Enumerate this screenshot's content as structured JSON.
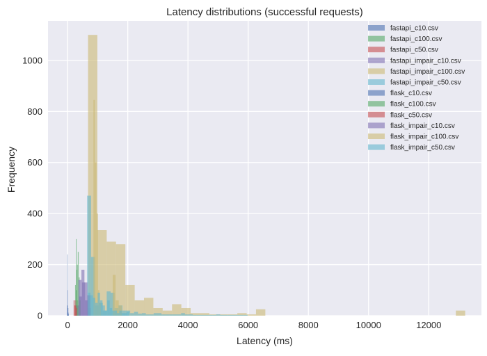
{
  "chart_data": {
    "type": "bar",
    "subtype": "overlapping-histogram",
    "title": "Latency distributions (successful requests)",
    "xlabel": "Latency (ms)",
    "ylabel": "Frequency",
    "xlim": [
      -650,
      13750
    ],
    "ylim": [
      0,
      1155
    ],
    "x_ticks": [
      0,
      2000,
      4000,
      6000,
      8000,
      10000,
      12000
    ],
    "y_ticks": [
      0,
      200,
      400,
      600,
      800,
      1000
    ],
    "x_tick_labels": [
      "0",
      "2000",
      "4000",
      "6000",
      "8000",
      "10000",
      "12000"
    ],
    "y_tick_labels": [
      "0",
      "200",
      "400",
      "600",
      "800",
      "1000"
    ],
    "grid": true,
    "legend_position": "top-right",
    "style": {
      "plot_background": "#eaeaf2",
      "grid_color": "#ffffff",
      "bar_opacity": 0.6
    },
    "series": [
      {
        "name": "fastapi_c10.csv",
        "color": "#4c72b0",
        "bins": [
          [
            -10,
            0,
            12
          ],
          [
            0,
            10,
            40
          ],
          [
            10,
            20,
            30
          ],
          [
            20,
            30,
            12
          ],
          [
            30,
            40,
            6
          ]
        ]
      },
      {
        "name": "fastapi_c100.csv",
        "color": "#55a868",
        "bins": [
          [
            250,
            275,
            120
          ],
          [
            275,
            300,
            300
          ],
          [
            300,
            325,
            180
          ],
          [
            325,
            350,
            60
          ]
        ]
      },
      {
        "name": "fastapi_c50.csv",
        "color": "#c44e52",
        "bins": [
          [
            230,
            260,
            40
          ],
          [
            260,
            290,
            60
          ],
          [
            290,
            320,
            40
          ]
        ]
      },
      {
        "name": "fastapi_impair_c10.csv",
        "color": "#8172b2",
        "bins": [
          [
            280,
            380,
            40
          ],
          [
            380,
            480,
            75
          ],
          [
            480,
            580,
            130
          ],
          [
            580,
            680,
            60
          ],
          [
            680,
            780,
            30
          ]
        ]
      },
      {
        "name": "fastapi_impair_c100.csv",
        "color": "#ccb974",
        "bins": [
          [
            680,
            990,
            1100
          ],
          [
            990,
            1300,
            335
          ],
          [
            1300,
            1610,
            290
          ],
          [
            1610,
            1920,
            280
          ],
          [
            1920,
            2230,
            120
          ],
          [
            2230,
            2540,
            60
          ],
          [
            2540,
            2850,
            70
          ],
          [
            2850,
            3160,
            30
          ],
          [
            3160,
            3470,
            20
          ],
          [
            3470,
            3780,
            45
          ],
          [
            3780,
            4090,
            30
          ],
          [
            4090,
            4400,
            10
          ],
          [
            4400,
            4710,
            10
          ],
          [
            4710,
            5020,
            5
          ],
          [
            5020,
            5330,
            5
          ],
          [
            5330,
            5640,
            5
          ],
          [
            5640,
            5950,
            10
          ],
          [
            5950,
            6260,
            5
          ],
          [
            6260,
            6570,
            25
          ],
          [
            12900,
            13210,
            20
          ]
        ]
      },
      {
        "name": "fastapi_impair_c50.csv",
        "color": "#64b5cd",
        "bins": [
          [
            650,
            780,
            470
          ],
          [
            780,
            910,
            230
          ],
          [
            910,
            1040,
            40
          ],
          [
            1040,
            1170,
            50
          ],
          [
            1170,
            1300,
            20
          ],
          [
            1300,
            1430,
            95
          ],
          [
            1430,
            1560,
            90
          ],
          [
            1560,
            1690,
            30
          ],
          [
            1690,
            1820,
            40
          ],
          [
            1820,
            1950,
            20
          ],
          [
            1950,
            2080,
            20
          ],
          [
            2080,
            2210,
            10
          ],
          [
            2210,
            2340,
            15
          ],
          [
            2340,
            2470,
            8
          ],
          [
            2470,
            2600,
            10
          ],
          [
            2600,
            2730,
            5
          ],
          [
            2730,
            2860,
            5
          ],
          [
            2860,
            2990,
            10
          ],
          [
            2990,
            3120,
            10
          ],
          [
            3120,
            3250,
            5
          ],
          [
            3250,
            3380,
            5
          ],
          [
            3380,
            3510,
            5
          ],
          [
            3510,
            3640,
            5
          ],
          [
            3640,
            3770,
            5
          ],
          [
            3770,
            3900,
            10
          ],
          [
            3900,
            4030,
            5
          ],
          [
            4030,
            4160,
            5
          ],
          [
            4160,
            4290,
            3
          ],
          [
            4290,
            4420,
            3
          ],
          [
            4420,
            4550,
            3
          ],
          [
            4550,
            4680,
            3
          ],
          [
            4680,
            4810,
            3
          ],
          [
            4810,
            4940,
            3
          ],
          [
            4940,
            5070,
            5
          ],
          [
            5070,
            5200,
            3
          ],
          [
            5200,
            5330,
            3
          ],
          [
            5330,
            5460,
            3
          ],
          [
            5460,
            5590,
            3
          ],
          [
            5590,
            5720,
            3
          ],
          [
            5720,
            5850,
            3
          ],
          [
            5850,
            5980,
            3
          ]
        ]
      },
      {
        "name": "flask_c10.csv",
        "color": "#4c72b0",
        "bins": [
          [
            -20,
            -10,
            40
          ],
          [
            -10,
            0,
            240
          ],
          [
            0,
            10,
            100
          ],
          [
            10,
            20,
            30
          ]
        ]
      },
      {
        "name": "flask_c100.csv",
        "color": "#55a868",
        "bins": [
          [
            280,
            310,
            100
          ],
          [
            310,
            340,
            200
          ],
          [
            340,
            370,
            250
          ],
          [
            370,
            400,
            150
          ],
          [
            400,
            430,
            60
          ]
        ]
      },
      {
        "name": "flask_c50.csv",
        "color": "#c44e52",
        "bins": [
          [
            200,
            240,
            60
          ],
          [
            240,
            280,
            40
          ],
          [
            280,
            320,
            30
          ]
        ]
      },
      {
        "name": "flask_impair_c10.csv",
        "color": "#8172b2",
        "bins": [
          [
            360,
            460,
            140
          ],
          [
            460,
            560,
            180
          ],
          [
            560,
            660,
            130
          ],
          [
            660,
            760,
            80
          ]
        ]
      },
      {
        "name": "flask_impair_c100.csv",
        "color": "#ccb974",
        "bins": [
          [
            860,
            910,
            845
          ],
          [
            910,
            960,
            600
          ],
          [
            960,
            1010,
            400
          ],
          [
            1010,
            1060,
            100
          ],
          [
            1060,
            1110,
            50
          ],
          [
            1500,
            1600,
            160
          ],
          [
            1600,
            1700,
            60
          ],
          [
            1700,
            1800,
            40
          ]
        ]
      },
      {
        "name": "flask_impair_c50.csv",
        "color": "#64b5cd",
        "bins": [
          [
            680,
            760,
            90
          ],
          [
            760,
            840,
            80
          ],
          [
            840,
            920,
            70
          ],
          [
            920,
            1000,
            50
          ],
          [
            1000,
            1080,
            90
          ],
          [
            1080,
            1160,
            60
          ],
          [
            1160,
            1240,
            40
          ],
          [
            1240,
            1320,
            20
          ],
          [
            1320,
            1400,
            60
          ],
          [
            1400,
            1480,
            30
          ],
          [
            1480,
            1560,
            20
          ],
          [
            1560,
            1640,
            20
          ],
          [
            1640,
            1720,
            10
          ],
          [
            1720,
            1800,
            20
          ],
          [
            1800,
            1880,
            10
          ],
          [
            1880,
            1960,
            10
          ],
          [
            1960,
            2040,
            15
          ]
        ]
      }
    ]
  }
}
